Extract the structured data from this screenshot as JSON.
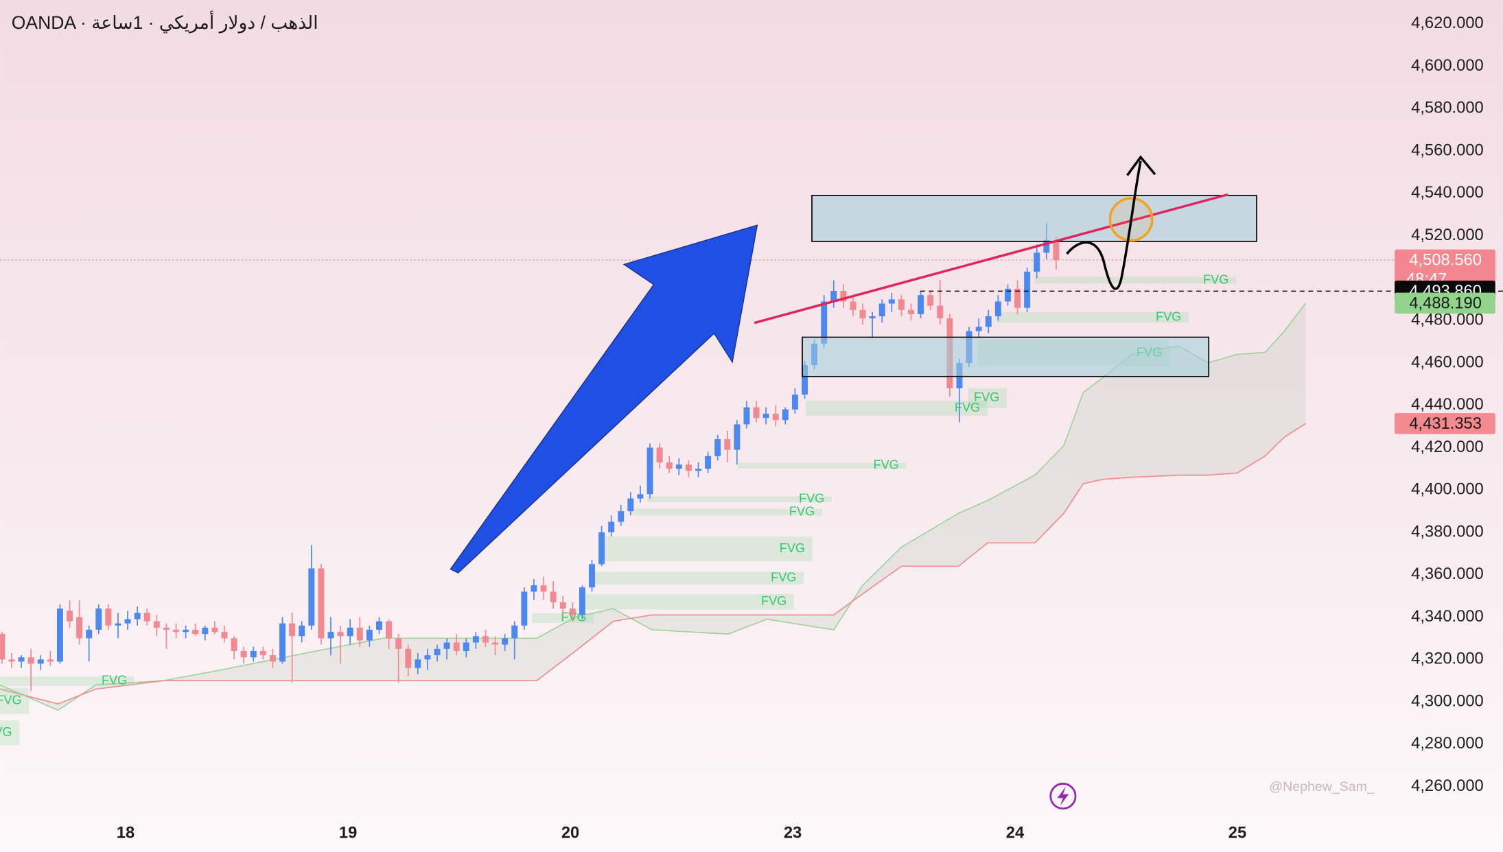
{
  "chart_data": {
    "type": "candlestick",
    "title": "OANDA · الذهب / دولار أمريكي · 1ساعة",
    "watermark": "@Nephew_Sam_",
    "up_color": "#4d88ef",
    "down_color": "#f28890",
    "xlim": [
      -0.2,
      144.0
    ],
    "ylim": [
      4246.87,
      4631.31
    ],
    "xticks": [
      {
        "value": 12.78,
        "label": "18"
      },
      {
        "value": 35.78,
        "label": "19"
      },
      {
        "value": 58.77,
        "label": "20"
      },
      {
        "value": 81.76,
        "label": "23"
      },
      {
        "value": 104.75,
        "label": "24"
      },
      {
        "value": 127.74,
        "label": "25"
      }
    ],
    "yticks": [
      {
        "value": 4260,
        "label": "4,260.000"
      },
      {
        "value": 4280,
        "label": "4,280.000"
      },
      {
        "value": 4300,
        "label": "4,300.000"
      },
      {
        "value": 4320,
        "label": "4,320.000"
      },
      {
        "value": 4340,
        "label": "4,340.000"
      },
      {
        "value": 4360,
        "label": "4,360.000"
      },
      {
        "value": 4380,
        "label": "4,380.000"
      },
      {
        "value": 4400,
        "label": "4,400.000"
      },
      {
        "value": 4420,
        "label": "4,420.000"
      },
      {
        "value": 4440,
        "label": "4,440.000"
      },
      {
        "value": 4460,
        "label": "4,460.000"
      },
      {
        "value": 4480,
        "label": "4,480.000"
      },
      {
        "value": 4500,
        "label": "4,500.000"
      },
      {
        "value": 4520,
        "label": "4,520.000"
      },
      {
        "value": 4540,
        "label": "4,540.000"
      },
      {
        "value": 4560,
        "label": "4,560.000"
      },
      {
        "value": 4580,
        "label": "4,580.000"
      },
      {
        "value": 4600,
        "label": "4,600.000"
      },
      {
        "value": 4620,
        "label": "4,620.000"
      }
    ],
    "x": [
      0,
      1,
      2,
      3,
      4,
      5,
      6,
      7,
      8,
      9,
      10,
      11,
      12,
      13,
      14,
      15,
      16,
      17,
      18,
      19,
      20,
      21,
      22,
      23,
      24,
      25,
      26,
      27,
      28,
      29,
      30,
      31,
      32,
      33,
      34,
      35,
      36,
      37,
      38,
      39,
      40,
      41,
      42,
      43,
      44,
      45,
      46,
      47,
      48,
      49,
      50,
      51,
      52,
      53,
      54,
      55,
      56,
      57,
      58,
      59,
      60,
      61,
      62,
      63,
      64,
      65,
      66,
      67,
      68,
      69,
      70,
      71,
      72,
      73,
      74,
      75,
      76,
      77,
      78,
      79,
      80,
      81,
      82,
      83,
      84,
      85,
      86,
      87,
      88,
      89,
      90,
      91,
      92,
      93,
      94,
      95,
      96,
      97,
      98,
      99,
      100,
      101,
      102,
      103,
      104,
      105,
      106,
      107,
      108,
      109
    ],
    "open": [
      4332,
      4320,
      4319,
      4321,
      4318,
      4320,
      4319,
      4343,
      4340,
      4330,
      4334,
      4344,
      4336,
      4337,
      4339,
      4342,
      4338,
      4335,
      4334,
      4333,
      4334,
      4332,
      4335,
      4333,
      4330,
      4324,
      4321,
      4324,
      4322,
      4319,
      4337,
      4331,
      4336,
      4363,
      4330,
      4333,
      4331,
      4335,
      4329,
      4334,
      4338,
      4330,
      4325,
      4316,
      4320,
      4322,
      4325,
      4328,
      4324,
      4328,
      4331,
      4328,
      4327,
      4330,
      4336,
      4352,
      4355,
      4352,
      4347,
      4344,
      4341,
      4354,
      4365,
      4380,
      4385,
      4390,
      4396,
      4398,
      4420,
      4413,
      4410,
      4412,
      4409,
      4410,
      4416,
      4424,
      4419,
      4431,
      4439,
      4434,
      4436,
      4433,
      4438,
      4445,
      4459,
      4469,
      4489,
      4494,
      4489,
      4485,
      4481,
      4482,
      4488,
      4490,
      4485,
      4483,
      4492,
      4487,
      4481,
      4448,
      4460,
      4475,
      4477,
      4482,
      4489,
      4495,
      4486,
      4503,
      4512,
      4518
    ],
    "high": [
      4333,
      4323,
      4322,
      4325,
      4322,
      4324,
      4346,
      4348,
      4348,
      4336,
      4346,
      4346,
      4342,
      4343,
      4345,
      4344,
      4341,
      4337,
      4337,
      4336,
      4337,
      4336,
      4338,
      4336,
      4331,
      4326,
      4326,
      4326,
      4325,
      4340,
      4342,
      4338,
      4374,
      4365,
      4340,
      4336,
      4339,
      4340,
      4336,
      4340,
      4339,
      4332,
      4327,
      4323,
      4325,
      4327,
      4330,
      4332,
      4330,
      4333,
      4334,
      4331,
      4332,
      4338,
      4354,
      4358,
      4359,
      4357,
      4350,
      4347,
      4355,
      4367,
      4383,
      4388,
      4393,
      4399,
      4402,
      4422,
      4422,
      4416,
      4415,
      4414,
      4413,
      4418,
      4426,
      4428,
      4433,
      4442,
      4442,
      4439,
      4440,
      4439,
      4448,
      4461,
      4471,
      4492,
      4499,
      4497,
      4492,
      4488,
      4484,
      4490,
      4493,
      4492,
      4488,
      4494,
      4494,
      4499,
      4483,
      4462,
      4477,
      4481,
      4485,
      4492,
      4497,
      4499,
      4505,
      4516,
      4526,
      4520
    ],
    "low": [
      4318,
      4316,
      4316,
      4305,
      4315,
      4317,
      4318,
      4335,
      4327,
      4319,
      4332,
      4334,
      4330,
      4334,
      4336,
      4336,
      4331,
      4325,
      4330,
      4330,
      4331,
      4329,
      4332,
      4328,
      4320,
      4318,
      4319,
      4320,
      4316,
      4318,
      4309,
      4328,
      4334,
      4327,
      4322,
      4318,
      4327,
      4326,
      4326,
      4332,
      4325,
      4309,
      4312,
      4313,
      4315,
      4319,
      4320,
      4322,
      4321,
      4325,
      4326,
      4322,
      4324,
      4320,
      4334,
      4348,
      4348,
      4344,
      4341,
      4338,
      4339,
      4352,
      4364,
      4378,
      4383,
      4388,
      4394,
      4396,
      4410,
      4408,
      4407,
      4406,
      4406,
      4408,
      4414,
      4413,
      4412,
      4429,
      4432,
      4431,
      4430,
      4431,
      4436,
      4443,
      4457,
      4467,
      4486,
      4486,
      4482,
      4478,
      4472,
      4479,
      4484,
      4482,
      4480,
      4481,
      4485,
      4478,
      4444,
      4432,
      4458,
      4472,
      4474,
      4480,
      4487,
      4483,
      4484,
      4500,
      4509,
      4504
    ],
    "close": [
      4320,
      4319,
      4321,
      4318,
      4320,
      4319,
      4344,
      4338,
      4330,
      4334,
      4344,
      4336,
      4337,
      4339,
      4342,
      4338,
      4335,
      4334,
      4333,
      4334,
      4332,
      4335,
      4333,
      4330,
      4324,
      4321,
      4324,
      4322,
      4319,
      4337,
      4331,
      4336,
      4363,
      4330,
      4333,
      4331,
      4335,
      4329,
      4334,
      4338,
      4330,
      4325,
      4316,
      4320,
      4322,
      4325,
      4328,
      4324,
      4328,
      4331,
      4328,
      4327,
      4330,
      4336,
      4352,
      4355,
      4352,
      4347,
      4344,
      4341,
      4354,
      4365,
      4380,
      4385,
      4390,
      4396,
      4398,
      4420,
      4413,
      4410,
      4412,
      4409,
      4410,
      4416,
      4424,
      4419,
      4431,
      4439,
      4434,
      4436,
      4433,
      4438,
      4445,
      4459,
      4469,
      4489,
      4494,
      4489,
      4485,
      4481,
      4482,
      4488,
      4490,
      4485,
      4483,
      4492,
      4487,
      4481,
      4448,
      4460,
      4475,
      4477,
      4482,
      4489,
      4495,
      4486,
      4503,
      4512,
      4518,
      4508.56
    ],
    "cloud": {
      "span_a_color": "#9fd39a",
      "span_b_color": "#f08c8c",
      "x": [
        -0.2,
        5.8,
        9.7,
        16.7,
        22.6,
        32.5,
        39.4,
        55.3,
        59.3,
        63.2,
        67.2,
        75.1,
        79.1,
        86.0,
        89.0,
        93.0,
        98.9,
        101.9,
        106.8,
        109.8,
        111.8,
        113.8,
        116.8,
        121.7,
        124.7,
        127.7,
        130.6,
        132.6,
        134.8
      ],
      "span_a": [
        4308,
        4296,
        4308,
        4310,
        4315,
        4324,
        4330,
        4330,
        4340,
        4344,
        4334,
        4332,
        4339,
        4334,
        4355,
        4373,
        4389,
        4395,
        4407,
        4421,
        4446,
        4453,
        4464,
        4468,
        4460,
        4464,
        4465,
        4475,
        4488.19
      ],
      "span_b": [
        4306,
        4299,
        4306,
        4310,
        4310,
        4310,
        4310,
        4310,
        4324,
        4338,
        4341,
        4341,
        4341,
        4341,
        4351,
        4364,
        4364,
        4375,
        4375,
        4389,
        4403,
        4405,
        4406,
        4407,
        4407,
        4408,
        4416,
        4425,
        4431.353
      ]
    },
    "fvg_color": "#35c96a",
    "fvg": [
      {
        "label": "FVG",
        "x0": 106.8,
        "x1": 127.6,
        "low": 4497.4,
        "high": 4500.6
      },
      {
        "label": "FVG",
        "x0": 102.9,
        "x1": 122.7,
        "low": 4478.9,
        "high": 4483.9
      },
      {
        "label": "FVG",
        "x0": 100.9,
        "x1": 120.7,
        "low": 4458.5,
        "high": 4470.7
      },
      {
        "label": "FVG",
        "x0": 99.9,
        "x1": 103.9,
        "low": 4438.6,
        "high": 4448.1
      },
      {
        "label": "FVG",
        "x0": 83.1,
        "x1": 101.9,
        "low": 4435.0,
        "high": 4442.2
      },
      {
        "label": "FVG",
        "x0": 76.1,
        "x1": 93.5,
        "low": 4410.1,
        "high": 4412.8
      },
      {
        "label": "FVG",
        "x0": 66.7,
        "x1": 85.8,
        "low": 4394.3,
        "high": 4397.0
      },
      {
        "label": "FVG",
        "x0": 65.2,
        "x1": 84.8,
        "low": 4388.0,
        "high": 4391.1
      },
      {
        "label": "FVG",
        "x0": 61.7,
        "x1": 83.8,
        "low": 4366.3,
        "high": 4378.0
      },
      {
        "label": "FVG",
        "x0": 60.8,
        "x1": 82.9,
        "low": 4355.4,
        "high": 4361.3
      },
      {
        "label": "FVG",
        "x0": 59.8,
        "x1": 81.9,
        "low": 4343.6,
        "high": 4350.9
      },
      {
        "label": "FVG",
        "x0": 54.8,
        "x1": 61.2,
        "low": 4337.3,
        "high": 4341.8
      },
      {
        "label": "FVG",
        "x0": -0.2,
        "x1": 13.7,
        "low": 4307.5,
        "high": 4312.0
      },
      {
        "label": "FVG",
        "x0": -0.4,
        "x1": 2.8,
        "low": 4294.3,
        "high": 4306.6
      },
      {
        "label": "FVG",
        "x0": -0.4,
        "x1": 1.8,
        "low": 4279.4,
        "high": 4291.2
      }
    ],
    "price_labels": [
      {
        "value": 4508.56,
        "label": "4,508.560",
        "countdown": "48:47",
        "color": "#f4868f",
        "text_color": "#ffffff",
        "line_style": "dotted"
      },
      {
        "value": 4493.86,
        "label": "4,493.860",
        "color": "#0a0a0a",
        "text_color": "#ffffff",
        "line_style": "dashed"
      },
      {
        "value": 4488.19,
        "label": "4,488.190",
        "color": "#93d38d",
        "text_color": "#102010"
      },
      {
        "value": 4431.353,
        "label": "4,431.353",
        "color": "#f28a90",
        "text_color": "#1a1a1a"
      }
    ]
  }
}
